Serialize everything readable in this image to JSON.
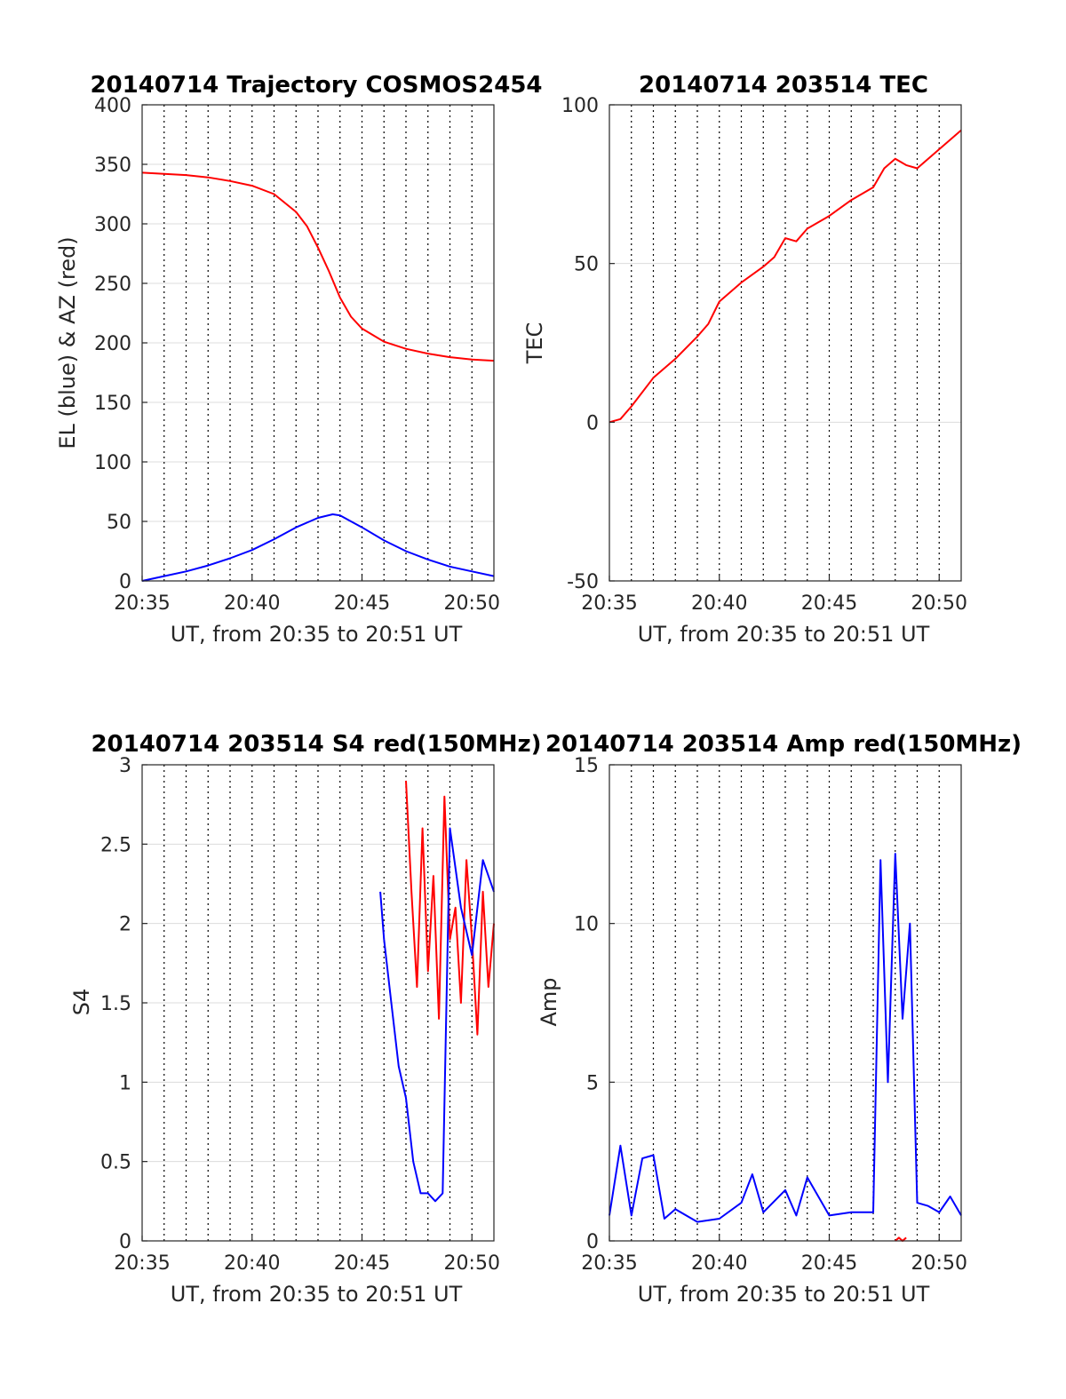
{
  "colors": {
    "azimuth": "#ff0000",
    "elevation": "#0000ff",
    "tec": "#ff0000",
    "s4_red": "#ff0000",
    "s4_blue": "#0000ff",
    "amp_red": "#ff0000",
    "amp_blue": "#0000ff"
  },
  "chart_data": [
    {
      "type": "line",
      "title": "20140714 Trajectory COSMOS2454",
      "xlabel": "UT, from 20:35 to 20:51 UT",
      "ylabel": "EL (blue) & AZ (red)",
      "xlim": [
        "20:35",
        "20:51"
      ],
      "ylim": [
        0,
        400
      ],
      "xticks": [
        "20:35",
        "20:40",
        "20:45",
        "20:50"
      ],
      "yticks": [
        "0",
        "50",
        "100",
        "150",
        "200",
        "250",
        "300",
        "350",
        "400"
      ],
      "grid": {
        "vertical_dotted_minutes": true,
        "horizontal": true
      },
      "series": [
        {
          "color_key": "azimuth",
          "x": [
            "20:35",
            "20:36",
            "20:37",
            "20:38",
            "20:39",
            "20:40",
            "20:41",
            "20:42",
            "20:42:30",
            "20:43",
            "20:43:30",
            "20:44",
            "20:44:30",
            "20:45",
            "20:46",
            "20:47",
            "20:48",
            "20:49",
            "20:50",
            "20:51"
          ],
          "values": [
            343,
            342,
            341,
            339,
            336,
            332,
            325,
            310,
            298,
            280,
            260,
            238,
            222,
            212,
            201,
            195,
            191,
            188,
            186,
            185
          ]
        },
        {
          "color_key": "elevation",
          "x": [
            "20:35",
            "20:36",
            "20:37",
            "20:38",
            "20:39",
            "20:40",
            "20:41",
            "20:42",
            "20:43",
            "20:43:40",
            "20:44",
            "20:45",
            "20:46",
            "20:47",
            "20:48",
            "20:49",
            "20:50",
            "20:51"
          ],
          "values": [
            0,
            4,
            8,
            13,
            19,
            26,
            35,
            45,
            53,
            56,
            55,
            45,
            34,
            25,
            18,
            12,
            8,
            4
          ]
        }
      ]
    },
    {
      "type": "line",
      "title": "20140714 203514 TEC",
      "xlabel": "UT, from 20:35 to 20:51 UT",
      "ylabel": "TEC",
      "xlim": [
        "20:35",
        "20:51"
      ],
      "ylim": [
        -50,
        100
      ],
      "xticks": [
        "20:35",
        "20:40",
        "20:45",
        "20:50"
      ],
      "yticks": [
        "-50",
        "0",
        "50",
        "100"
      ],
      "grid": {
        "vertical_dotted_minutes": true,
        "horizontal": true
      },
      "series": [
        {
          "color_key": "tec",
          "x": [
            "20:35",
            "20:35:30",
            "20:36",
            "20:37",
            "20:38",
            "20:39",
            "20:39:30",
            "20:40",
            "20:41",
            "20:42",
            "20:42:30",
            "20:43",
            "20:43:30",
            "20:44",
            "20:45",
            "20:46",
            "20:47",
            "20:47:30",
            "20:48",
            "20:48:30",
            "20:49",
            "20:50",
            "20:51"
          ],
          "values": [
            0,
            1,
            5,
            14,
            20,
            27,
            31,
            38,
            44,
            49,
            52,
            58,
            57,
            61,
            65,
            70,
            74,
            80,
            83,
            81,
            80,
            86,
            92
          ]
        }
      ]
    },
    {
      "type": "line",
      "title": "20140714 203514 S4 red(150MHz)",
      "xlabel": "UT, from 20:35 to 20:51 UT",
      "ylabel": "S4",
      "xlim": [
        "20:35",
        "20:51"
      ],
      "ylim": [
        0,
        3
      ],
      "xticks": [
        "20:35",
        "20:40",
        "20:45",
        "20:50"
      ],
      "yticks": [
        "0",
        "0.5",
        "1",
        "1.5",
        "2",
        "2.5",
        "3"
      ],
      "grid": {
        "vertical_dotted_minutes": true,
        "horizontal": true
      },
      "series": [
        {
          "color_key": "s4_red",
          "x": [
            "20:47",
            "20:47:15",
            "20:47:30",
            "20:47:45",
            "20:48",
            "20:48:15",
            "20:48:30",
            "20:48:45",
            "20:49",
            "20:49:15",
            "20:49:30",
            "20:49:45",
            "20:50",
            "20:50:15",
            "20:50:30",
            "20:50:45",
            "20:51"
          ],
          "values": [
            2.9,
            2.2,
            1.6,
            2.6,
            1.7,
            2.3,
            1.4,
            2.8,
            1.9,
            2.1,
            1.5,
            2.4,
            1.9,
            1.3,
            2.2,
            1.6,
            2.0
          ]
        },
        {
          "color_key": "s4_blue",
          "x": [
            "20:45:50",
            "20:46",
            "20:46:20",
            "20:46:40",
            "20:47",
            "20:47:20",
            "20:47:40",
            "20:48",
            "20:48:20",
            "20:48:40",
            "20:49",
            "20:49:30",
            "20:50",
            "20:50:30",
            "20:51"
          ],
          "values": [
            2.2,
            1.9,
            1.5,
            1.1,
            0.9,
            0.5,
            0.3,
            0.3,
            0.25,
            0.3,
            2.6,
            2.1,
            1.8,
            2.4,
            2.2
          ]
        }
      ]
    },
    {
      "type": "line",
      "title": "20140714 203514 Amp red(150MHz)",
      "xlabel": "UT, from 20:35 to 20:51 UT",
      "ylabel": "Amp",
      "xlim": [
        "20:35",
        "20:51"
      ],
      "ylim": [
        0,
        15
      ],
      "xticks": [
        "20:35",
        "20:40",
        "20:45",
        "20:50"
      ],
      "yticks": [
        "0",
        "5",
        "10",
        "15"
      ],
      "grid": {
        "vertical_dotted_minutes": true,
        "horizontal": true
      },
      "series": [
        {
          "color_key": "amp_blue",
          "x": [
            "20:35",
            "20:35:30",
            "20:36",
            "20:36:30",
            "20:37",
            "20:37:30",
            "20:38",
            "20:39",
            "20:40",
            "20:41",
            "20:41:30",
            "20:42",
            "20:43",
            "20:43:30",
            "20:44",
            "20:45",
            "20:46",
            "20:47",
            "20:47:20",
            "20:47:40",
            "20:48",
            "20:48:20",
            "20:48:40",
            "20:49",
            "20:49:30",
            "20:50",
            "20:50:30",
            "20:51"
          ],
          "values": [
            0.8,
            3.0,
            0.8,
            2.6,
            2.7,
            0.7,
            1.0,
            0.6,
            0.7,
            1.2,
            2.1,
            0.9,
            1.6,
            0.8,
            2.0,
            0.8,
            0.9,
            0.9,
            12.0,
            5.0,
            12.2,
            7.0,
            10.0,
            1.2,
            1.1,
            0.9,
            1.4,
            0.8
          ]
        },
        {
          "color_key": "amp_red",
          "x": [
            "20:48",
            "20:48:10",
            "20:48:20",
            "20:48:30"
          ],
          "values": [
            0.0,
            0.1,
            0.0,
            0.1
          ]
        }
      ]
    }
  ]
}
